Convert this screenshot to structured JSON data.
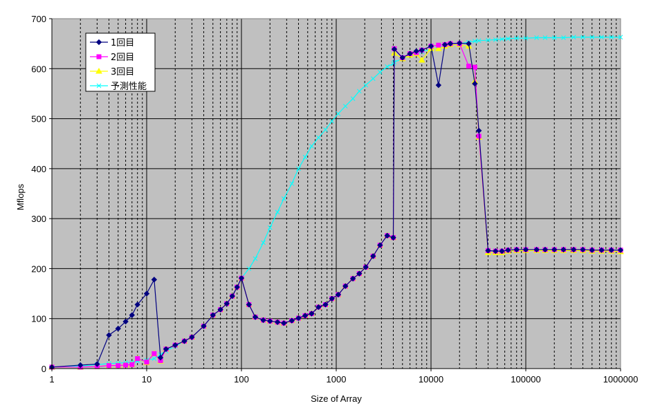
{
  "chart_data": {
    "type": "line",
    "xscale": "log",
    "xlabel": "Size of Array",
    "ylabel": "Mflops",
    "xlim": [
      1,
      1000000
    ],
    "ylim": [
      0,
      700
    ],
    "x_ticks": [
      1,
      10,
      100,
      1000,
      10000,
      100000,
      1000000
    ],
    "x_tick_labels": [
      "1",
      "10",
      "100",
      "1000",
      "10000",
      "100000",
      "1000000"
    ],
    "y_ticks": [
      0,
      100,
      200,
      300,
      400,
      500,
      600,
      700
    ],
    "y_tick_labels": [
      "0",
      "100",
      "200",
      "300",
      "400",
      "500",
      "600",
      "700"
    ],
    "grid": {
      "major": true,
      "minor_x": true
    },
    "legend_position": "top-left",
    "plot_background": "#c0c0c0",
    "series": [
      {
        "name": "1回目",
        "color": "#000080",
        "marker": "diamond",
        "points": [
          [
            1,
            3
          ],
          [
            2,
            7
          ],
          [
            3,
            9
          ],
          [
            4,
            67
          ],
          [
            5,
            80
          ],
          [
            6,
            94
          ],
          [
            7,
            107
          ],
          [
            8,
            128
          ],
          [
            10,
            150
          ],
          [
            12,
            178
          ],
          [
            14,
            22
          ],
          [
            16,
            39
          ],
          [
            20,
            47
          ],
          [
            25,
            55
          ],
          [
            30,
            63
          ],
          [
            40,
            85
          ],
          [
            50,
            107
          ],
          [
            60,
            118
          ],
          [
            70,
            130
          ],
          [
            80,
            145
          ],
          [
            90,
            163
          ],
          [
            100,
            181
          ],
          [
            120,
            128
          ],
          [
            140,
            103
          ],
          [
            170,
            97
          ],
          [
            200,
            95
          ],
          [
            240,
            93
          ],
          [
            280,
            91
          ],
          [
            340,
            96
          ],
          [
            400,
            101
          ],
          [
            470,
            106
          ],
          [
            550,
            110
          ],
          [
            650,
            123
          ],
          [
            770,
            128
          ],
          [
            900,
            140
          ],
          [
            1050,
            148
          ],
          [
            1250,
            165
          ],
          [
            1500,
            180
          ],
          [
            1750,
            190
          ],
          [
            2050,
            203
          ],
          [
            2450,
            225
          ],
          [
            2900,
            247
          ],
          [
            3450,
            266
          ],
          [
            4000,
            262
          ],
          [
            4100,
            639
          ],
          [
            5000,
            622
          ],
          [
            6000,
            630
          ],
          [
            7000,
            635
          ],
          [
            8000,
            637
          ],
          [
            10000,
            645
          ],
          [
            12000,
            567
          ],
          [
            14000,
            648
          ],
          [
            16000,
            650
          ],
          [
            20000,
            651
          ],
          [
            25000,
            650
          ],
          [
            29000,
            570
          ],
          [
            32000,
            476
          ],
          [
            40000,
            236
          ],
          [
            48000,
            235
          ],
          [
            56000,
            235
          ],
          [
            65000,
            237
          ],
          [
            80000,
            238
          ],
          [
            100000,
            238
          ],
          [
            130000,
            238
          ],
          [
            160000,
            238
          ],
          [
            200000,
            238
          ],
          [
            250000,
            238
          ],
          [
            320000,
            238
          ],
          [
            400000,
            238
          ],
          [
            500000,
            237
          ],
          [
            630000,
            237
          ],
          [
            800000,
            237
          ],
          [
            1000000,
            237
          ]
        ]
      },
      {
        "name": "2回目",
        "color": "#ff00ff",
        "marker": "square",
        "points": [
          [
            1,
            3
          ],
          [
            2,
            3
          ],
          [
            3,
            4
          ],
          [
            4,
            6
          ],
          [
            5,
            6
          ],
          [
            6,
            7
          ],
          [
            7,
            8
          ],
          [
            8,
            20
          ],
          [
            10,
            13
          ],
          [
            12,
            30
          ],
          [
            14,
            16
          ],
          [
            16,
            39
          ],
          [
            20,
            47
          ],
          [
            25,
            55
          ],
          [
            30,
            63
          ],
          [
            40,
            85
          ],
          [
            50,
            107
          ],
          [
            60,
            118
          ],
          [
            70,
            130
          ],
          [
            80,
            145
          ],
          [
            90,
            163
          ],
          [
            100,
            181
          ],
          [
            120,
            128
          ],
          [
            140,
            103
          ],
          [
            170,
            97
          ],
          [
            200,
            95
          ],
          [
            240,
            93
          ],
          [
            280,
            91
          ],
          [
            340,
            96
          ],
          [
            400,
            101
          ],
          [
            470,
            106
          ],
          [
            550,
            110
          ],
          [
            650,
            123
          ],
          [
            770,
            128
          ],
          [
            900,
            140
          ],
          [
            1050,
            148
          ],
          [
            1250,
            165
          ],
          [
            1500,
            180
          ],
          [
            1750,
            190
          ],
          [
            2050,
            203
          ],
          [
            2450,
            225
          ],
          [
            2900,
            247
          ],
          [
            3450,
            266
          ],
          [
            4000,
            262
          ],
          [
            4100,
            640
          ],
          [
            5000,
            622
          ],
          [
            6000,
            630
          ],
          [
            7000,
            632
          ],
          [
            8000,
            637
          ],
          [
            10000,
            645
          ],
          [
            12000,
            647
          ],
          [
            14000,
            648
          ],
          [
            16000,
            650
          ],
          [
            20000,
            650
          ],
          [
            25000,
            605
          ],
          [
            29000,
            603
          ],
          [
            32000,
            465
          ],
          [
            40000,
            236
          ],
          [
            48000,
            235
          ],
          [
            56000,
            235
          ],
          [
            65000,
            237
          ],
          [
            80000,
            238
          ],
          [
            100000,
            238
          ],
          [
            130000,
            238
          ],
          [
            160000,
            238
          ],
          [
            200000,
            238
          ],
          [
            250000,
            238
          ],
          [
            320000,
            238
          ],
          [
            400000,
            238
          ],
          [
            500000,
            237
          ],
          [
            630000,
            237
          ],
          [
            800000,
            237
          ],
          [
            1000000,
            237
          ]
        ]
      },
      {
        "name": "3回目",
        "color": "#ffff00",
        "marker": "triangle",
        "points": [
          [
            1,
            3
          ],
          [
            2,
            3
          ],
          [
            3,
            4
          ],
          [
            4,
            6
          ],
          [
            5,
            6
          ],
          [
            6,
            7
          ],
          [
            7,
            8
          ],
          [
            8,
            20
          ],
          [
            10,
            12
          ],
          [
            12,
            30
          ],
          [
            14,
            15
          ],
          [
            16,
            39
          ],
          [
            20,
            47
          ],
          [
            25,
            55
          ],
          [
            30,
            63
          ],
          [
            40,
            85
          ],
          [
            50,
            107
          ],
          [
            60,
            118
          ],
          [
            70,
            130
          ],
          [
            80,
            145
          ],
          [
            90,
            163
          ],
          [
            100,
            181
          ],
          [
            120,
            128
          ],
          [
            140,
            103
          ],
          [
            170,
            97
          ],
          [
            200,
            95
          ],
          [
            240,
            93
          ],
          [
            280,
            91
          ],
          [
            340,
            96
          ],
          [
            400,
            101
          ],
          [
            470,
            106
          ],
          [
            550,
            110
          ],
          [
            650,
            123
          ],
          [
            770,
            128
          ],
          [
            900,
            140
          ],
          [
            1050,
            148
          ],
          [
            1250,
            165
          ],
          [
            1500,
            180
          ],
          [
            1750,
            190
          ],
          [
            2050,
            203
          ],
          [
            2450,
            225
          ],
          [
            2900,
            247
          ],
          [
            3450,
            266
          ],
          [
            4000,
            262
          ],
          [
            4100,
            631
          ],
          [
            5000,
            620
          ],
          [
            6000,
            627
          ],
          [
            7000,
            630
          ],
          [
            8000,
            617
          ],
          [
            10000,
            640
          ],
          [
            12000,
            640
          ],
          [
            14000,
            645
          ],
          [
            16000,
            648
          ],
          [
            20000,
            648
          ],
          [
            25000,
            645
          ],
          [
            29000,
            575
          ],
          [
            32000,
            463
          ],
          [
            40000,
            232
          ],
          [
            48000,
            232
          ],
          [
            56000,
            232
          ],
          [
            65000,
            235
          ],
          [
            80000,
            236
          ],
          [
            100000,
            236
          ],
          [
            130000,
            236
          ],
          [
            160000,
            236
          ],
          [
            200000,
            236
          ],
          [
            250000,
            236
          ],
          [
            320000,
            236
          ],
          [
            400000,
            236
          ],
          [
            500000,
            235
          ],
          [
            630000,
            235
          ],
          [
            800000,
            235
          ],
          [
            1000000,
            234
          ]
        ]
      },
      {
        "name": "予測性能",
        "color": "#00ffff",
        "marker": "x",
        "points": [
          [
            1,
            3
          ],
          [
            2,
            5
          ],
          [
            3,
            8
          ],
          [
            4,
            10
          ],
          [
            5,
            11
          ],
          [
            6,
            12
          ],
          [
            7,
            13
          ],
          [
            8,
            15
          ],
          [
            10,
            17
          ],
          [
            12,
            20
          ],
          [
            14,
            28
          ],
          [
            16,
            35
          ],
          [
            20,
            45
          ],
          [
            25,
            55
          ],
          [
            30,
            63
          ],
          [
            40,
            85
          ],
          [
            50,
            107
          ],
          [
            60,
            118
          ],
          [
            70,
            130
          ],
          [
            80,
            145
          ],
          [
            90,
            163
          ],
          [
            100,
            181
          ],
          [
            120,
            200
          ],
          [
            140,
            220
          ],
          [
            170,
            252
          ],
          [
            200,
            282
          ],
          [
            240,
            313
          ],
          [
            280,
            340
          ],
          [
            340,
            370
          ],
          [
            400,
            400
          ],
          [
            470,
            423
          ],
          [
            550,
            445
          ],
          [
            650,
            462
          ],
          [
            770,
            478
          ],
          [
            900,
            495
          ],
          [
            1050,
            510
          ],
          [
            1250,
            525
          ],
          [
            1500,
            540
          ],
          [
            1750,
            555
          ],
          [
            2050,
            567
          ],
          [
            2450,
            580
          ],
          [
            2900,
            593
          ],
          [
            3450,
            604
          ],
          [
            4000,
            610
          ],
          [
            4100,
            613
          ],
          [
            5000,
            620
          ],
          [
            6000,
            626
          ],
          [
            7000,
            630
          ],
          [
            8000,
            634
          ],
          [
            10000,
            639
          ],
          [
            12000,
            642
          ],
          [
            14000,
            645
          ],
          [
            16000,
            647
          ],
          [
            20000,
            650
          ],
          [
            25000,
            653
          ],
          [
            29000,
            655
          ],
          [
            32000,
            656
          ],
          [
            40000,
            657
          ],
          [
            48000,
            658
          ],
          [
            56000,
            659
          ],
          [
            65000,
            660
          ],
          [
            80000,
            661
          ],
          [
            100000,
            661
          ],
          [
            130000,
            662
          ],
          [
            160000,
            662
          ],
          [
            200000,
            662
          ],
          [
            250000,
            662
          ],
          [
            320000,
            663
          ],
          [
            400000,
            663
          ],
          [
            500000,
            663
          ],
          [
            630000,
            663
          ],
          [
            800000,
            663
          ],
          [
            1000000,
            663
          ]
        ]
      }
    ]
  }
}
